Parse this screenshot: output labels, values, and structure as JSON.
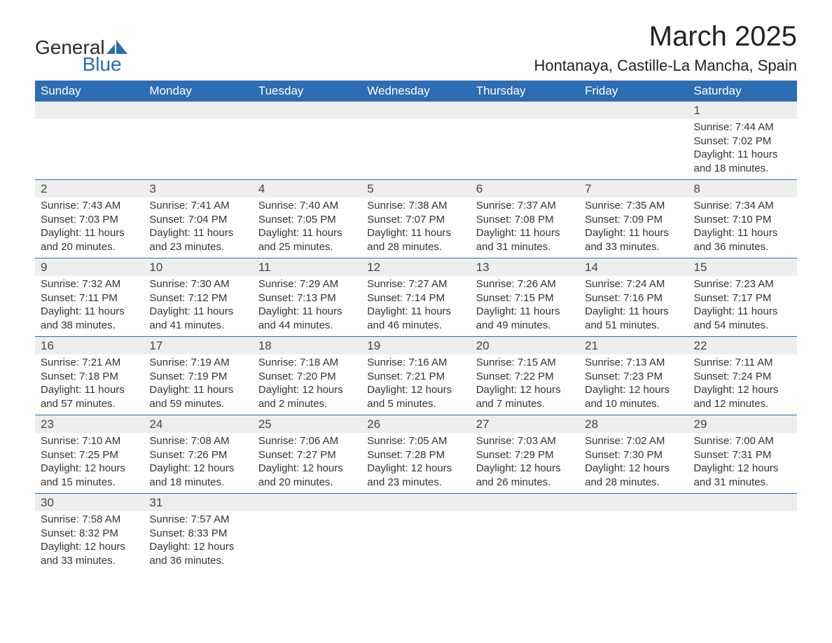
{
  "brand": {
    "part1": "General",
    "part2": "Blue"
  },
  "title": "March 2025",
  "location": "Hontanaya, Castille-La Mancha, Spain",
  "colors": {
    "header_bg": "#2d6db3",
    "header_fg": "#ffffff",
    "band_bg": "#eeeeee",
    "row_divider": "#2d6db3",
    "text": "#333333"
  },
  "table": {
    "columns": [
      "Sunday",
      "Monday",
      "Tuesday",
      "Wednesday",
      "Thursday",
      "Friday",
      "Saturday"
    ],
    "weeks": [
      [
        null,
        null,
        null,
        null,
        null,
        null,
        {
          "n": "1",
          "sr": "Sunrise: 7:44 AM",
          "ss": "Sunset: 7:02 PM",
          "dl": "Daylight: 11 hours and 18 minutes."
        }
      ],
      [
        {
          "n": "2",
          "sr": "Sunrise: 7:43 AM",
          "ss": "Sunset: 7:03 PM",
          "dl": "Daylight: 11 hours and 20 minutes."
        },
        {
          "n": "3",
          "sr": "Sunrise: 7:41 AM",
          "ss": "Sunset: 7:04 PM",
          "dl": "Daylight: 11 hours and 23 minutes."
        },
        {
          "n": "4",
          "sr": "Sunrise: 7:40 AM",
          "ss": "Sunset: 7:05 PM",
          "dl": "Daylight: 11 hours and 25 minutes."
        },
        {
          "n": "5",
          "sr": "Sunrise: 7:38 AM",
          "ss": "Sunset: 7:07 PM",
          "dl": "Daylight: 11 hours and 28 minutes."
        },
        {
          "n": "6",
          "sr": "Sunrise: 7:37 AM",
          "ss": "Sunset: 7:08 PM",
          "dl": "Daylight: 11 hours and 31 minutes."
        },
        {
          "n": "7",
          "sr": "Sunrise: 7:35 AM",
          "ss": "Sunset: 7:09 PM",
          "dl": "Daylight: 11 hours and 33 minutes."
        },
        {
          "n": "8",
          "sr": "Sunrise: 7:34 AM",
          "ss": "Sunset: 7:10 PM",
          "dl": "Daylight: 11 hours and 36 minutes."
        }
      ],
      [
        {
          "n": "9",
          "sr": "Sunrise: 7:32 AM",
          "ss": "Sunset: 7:11 PM",
          "dl": "Daylight: 11 hours and 38 minutes."
        },
        {
          "n": "10",
          "sr": "Sunrise: 7:30 AM",
          "ss": "Sunset: 7:12 PM",
          "dl": "Daylight: 11 hours and 41 minutes."
        },
        {
          "n": "11",
          "sr": "Sunrise: 7:29 AM",
          "ss": "Sunset: 7:13 PM",
          "dl": "Daylight: 11 hours and 44 minutes."
        },
        {
          "n": "12",
          "sr": "Sunrise: 7:27 AM",
          "ss": "Sunset: 7:14 PM",
          "dl": "Daylight: 11 hours and 46 minutes."
        },
        {
          "n": "13",
          "sr": "Sunrise: 7:26 AM",
          "ss": "Sunset: 7:15 PM",
          "dl": "Daylight: 11 hours and 49 minutes."
        },
        {
          "n": "14",
          "sr": "Sunrise: 7:24 AM",
          "ss": "Sunset: 7:16 PM",
          "dl": "Daylight: 11 hours and 51 minutes."
        },
        {
          "n": "15",
          "sr": "Sunrise: 7:23 AM",
          "ss": "Sunset: 7:17 PM",
          "dl": "Daylight: 11 hours and 54 minutes."
        }
      ],
      [
        {
          "n": "16",
          "sr": "Sunrise: 7:21 AM",
          "ss": "Sunset: 7:18 PM",
          "dl": "Daylight: 11 hours and 57 minutes."
        },
        {
          "n": "17",
          "sr": "Sunrise: 7:19 AM",
          "ss": "Sunset: 7:19 PM",
          "dl": "Daylight: 11 hours and 59 minutes."
        },
        {
          "n": "18",
          "sr": "Sunrise: 7:18 AM",
          "ss": "Sunset: 7:20 PM",
          "dl": "Daylight: 12 hours and 2 minutes."
        },
        {
          "n": "19",
          "sr": "Sunrise: 7:16 AM",
          "ss": "Sunset: 7:21 PM",
          "dl": "Daylight: 12 hours and 5 minutes."
        },
        {
          "n": "20",
          "sr": "Sunrise: 7:15 AM",
          "ss": "Sunset: 7:22 PM",
          "dl": "Daylight: 12 hours and 7 minutes."
        },
        {
          "n": "21",
          "sr": "Sunrise: 7:13 AM",
          "ss": "Sunset: 7:23 PM",
          "dl": "Daylight: 12 hours and 10 minutes."
        },
        {
          "n": "22",
          "sr": "Sunrise: 7:11 AM",
          "ss": "Sunset: 7:24 PM",
          "dl": "Daylight: 12 hours and 12 minutes."
        }
      ],
      [
        {
          "n": "23",
          "sr": "Sunrise: 7:10 AM",
          "ss": "Sunset: 7:25 PM",
          "dl": "Daylight: 12 hours and 15 minutes."
        },
        {
          "n": "24",
          "sr": "Sunrise: 7:08 AM",
          "ss": "Sunset: 7:26 PM",
          "dl": "Daylight: 12 hours and 18 minutes."
        },
        {
          "n": "25",
          "sr": "Sunrise: 7:06 AM",
          "ss": "Sunset: 7:27 PM",
          "dl": "Daylight: 12 hours and 20 minutes."
        },
        {
          "n": "26",
          "sr": "Sunrise: 7:05 AM",
          "ss": "Sunset: 7:28 PM",
          "dl": "Daylight: 12 hours and 23 minutes."
        },
        {
          "n": "27",
          "sr": "Sunrise: 7:03 AM",
          "ss": "Sunset: 7:29 PM",
          "dl": "Daylight: 12 hours and 26 minutes."
        },
        {
          "n": "28",
          "sr": "Sunrise: 7:02 AM",
          "ss": "Sunset: 7:30 PM",
          "dl": "Daylight: 12 hours and 28 minutes."
        },
        {
          "n": "29",
          "sr": "Sunrise: 7:00 AM",
          "ss": "Sunset: 7:31 PM",
          "dl": "Daylight: 12 hours and 31 minutes."
        }
      ],
      [
        {
          "n": "30",
          "sr": "Sunrise: 7:58 AM",
          "ss": "Sunset: 8:32 PM",
          "dl": "Daylight: 12 hours and 33 minutes."
        },
        {
          "n": "31",
          "sr": "Sunrise: 7:57 AM",
          "ss": "Sunset: 8:33 PM",
          "dl": "Daylight: 12 hours and 36 minutes."
        },
        null,
        null,
        null,
        null,
        null
      ]
    ]
  }
}
